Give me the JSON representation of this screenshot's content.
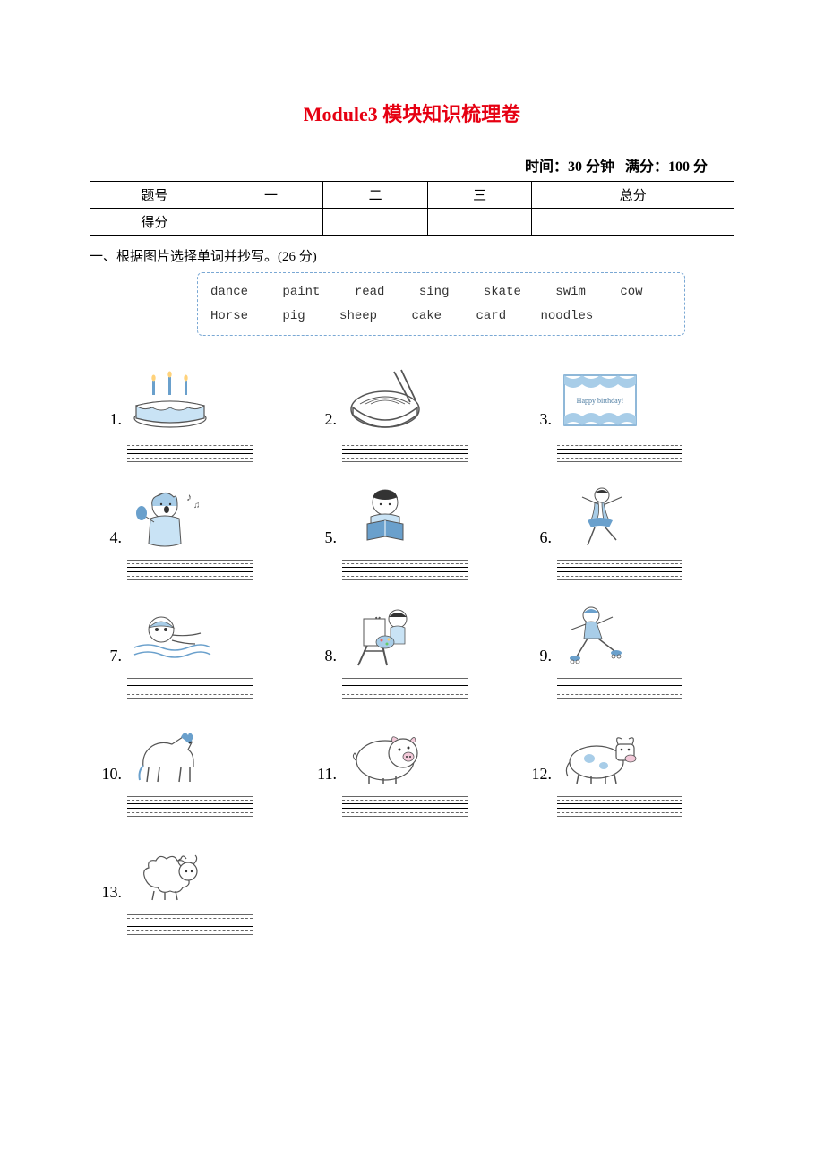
{
  "title": "Module3 模块知识梳理卷",
  "meta": {
    "time_label": "时间：",
    "time_value": "30 分钟",
    "score_label": "满分：",
    "score_value": "100 分"
  },
  "score_table": {
    "row1": [
      "题号",
      "一",
      "二",
      "三",
      "总分"
    ],
    "row2_label": "得分"
  },
  "section1": {
    "heading": "一、根据图片选择单词并抄写。(26 分)",
    "word_bank_row1": [
      "dance",
      "paint",
      "read",
      "sing",
      "skate",
      "swim",
      "cow"
    ],
    "word_bank_row2": [
      "Horse",
      "pig",
      "sheep",
      "cake",
      "card",
      "noodles"
    ],
    "items": [
      {
        "n": "1.",
        "icon": "cake"
      },
      {
        "n": "2.",
        "icon": "noodles"
      },
      {
        "n": "3.",
        "icon": "card",
        "card_text": "Happy birthday!"
      },
      {
        "n": "4.",
        "icon": "sing"
      },
      {
        "n": "5.",
        "icon": "read"
      },
      {
        "n": "6.",
        "icon": "dance"
      },
      {
        "n": "7.",
        "icon": "swim"
      },
      {
        "n": "8.",
        "icon": "paint"
      },
      {
        "n": "9.",
        "icon": "skate"
      },
      {
        "n": "10.",
        "icon": "horse"
      },
      {
        "n": "11.",
        "icon": "pig"
      },
      {
        "n": "12.",
        "icon": "cow"
      },
      {
        "n": "13.",
        "icon": "sheep"
      }
    ]
  },
  "style": {
    "title_color": "#e60012",
    "accent_stroke": "#6aa0cc",
    "accent_fill": "#a8cde8",
    "page_bg": "#ffffff",
    "line_gray": "#666666",
    "line_solid": "#000000",
    "bank_border": "#7aa8d4"
  }
}
